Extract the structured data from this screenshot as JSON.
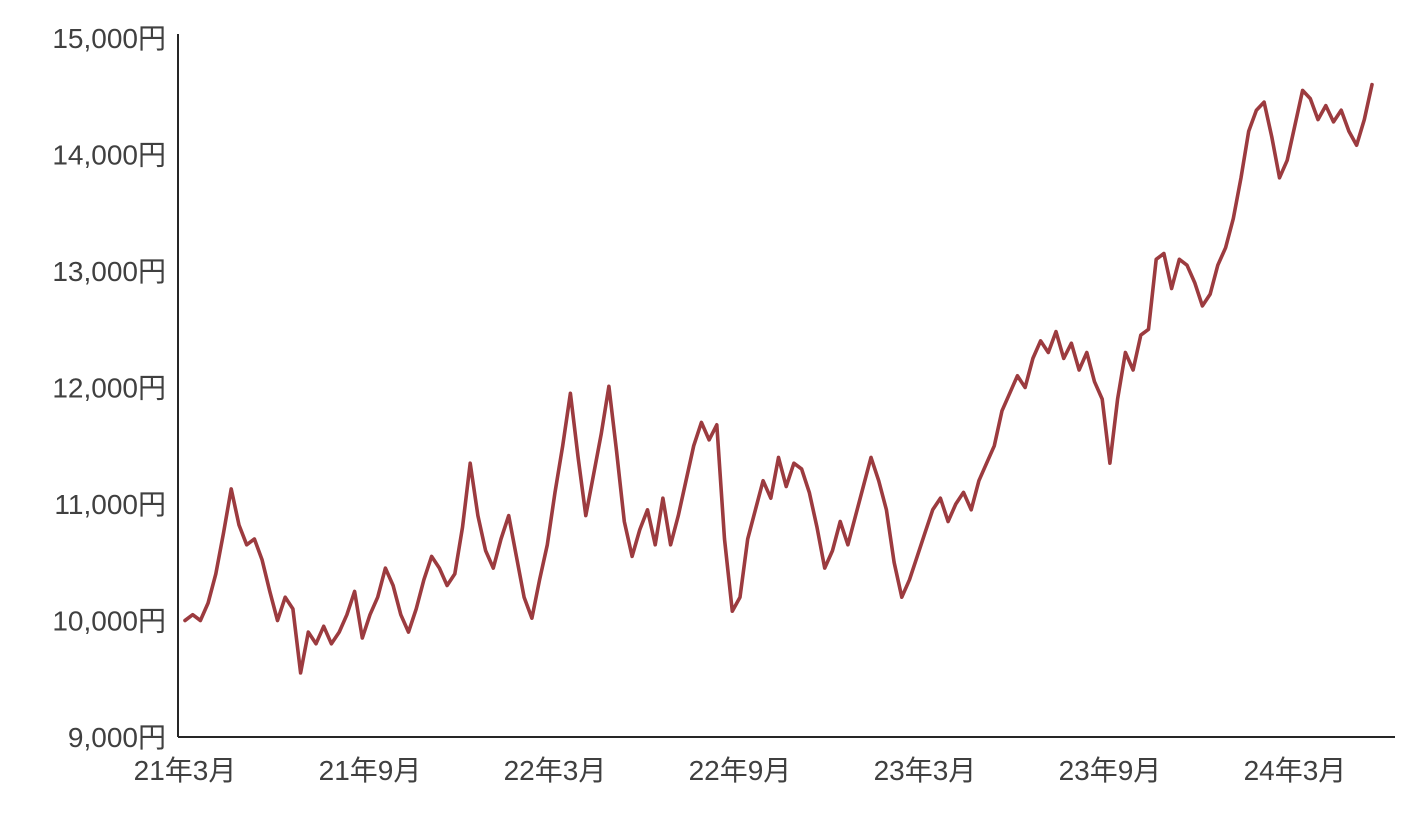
{
  "page": {
    "background_color": "#ffffff"
  },
  "chart_data": {
    "type": "line",
    "title": "",
    "unit": "円",
    "line_color": "#9C3B3F",
    "axis_color": "#262626",
    "label_color": "#404040",
    "grid": false,
    "legend": false,
    "y_axis": {
      "min": 9000,
      "max": 15000,
      "step": 1000,
      "tick_labels": [
        "9,000円",
        "10,000円",
        "11,000円",
        "12,000円",
        "13,000円",
        "14,000円",
        "15,000円"
      ]
    },
    "x_axis": {
      "tick_labels": [
        "21年3月",
        "21年9月",
        "22年3月",
        "22年9月",
        "23年3月",
        "23年9月",
        "24年3月"
      ],
      "tick_months": [
        0,
        6,
        12,
        18,
        24,
        30,
        36
      ],
      "total_months": 38.5
    },
    "values": [
      10000,
      10050,
      10000,
      10150,
      10400,
      10750,
      11130,
      10820,
      10650,
      10700,
      10520,
      10250,
      10000,
      10200,
      10100,
      9550,
      9900,
      9800,
      9950,
      9800,
      9900,
      10050,
      10250,
      9850,
      10050,
      10200,
      10450,
      10300,
      10050,
      9900,
      10100,
      10350,
      10550,
      10450,
      10300,
      10400,
      10800,
      11350,
      10900,
      10600,
      10450,
      10700,
      10900,
      10550,
      10200,
      10020,
      10350,
      10650,
      11100,
      11500,
      11950,
      11400,
      10900,
      11250,
      11600,
      12010,
      11450,
      10850,
      10550,
      10780,
      10950,
      10650,
      11050,
      10650,
      10900,
      11200,
      11500,
      11700,
      11550,
      11680,
      10700,
      10080,
      10200,
      10700,
      10950,
      11200,
      11050,
      11400,
      11150,
      11350,
      11300,
      11100,
      10800,
      10450,
      10600,
      10850,
      10650,
      10900,
      11150,
      11400,
      11200,
      10950,
      10500,
      10200,
      10350,
      10550,
      10750,
      10950,
      11050,
      10850,
      11000,
      11100,
      10950,
      11200,
      11350,
      11500,
      11800,
      11950,
      12100,
      12000,
      12250,
      12400,
      12300,
      12480,
      12250,
      12380,
      12150,
      12300,
      12050,
      11900,
      11350,
      11900,
      12300,
      12150,
      12450,
      12500,
      13100,
      13150,
      12850,
      13100,
      13050,
      12900,
      12700,
      12800,
      13050,
      13200,
      13450,
      13800,
      14200,
      14380,
      14450,
      14150,
      13800,
      13950,
      14250,
      14550,
      14480,
      14300,
      14420,
      14280,
      14380,
      14200,
      14080,
      14300,
      14600
    ]
  }
}
